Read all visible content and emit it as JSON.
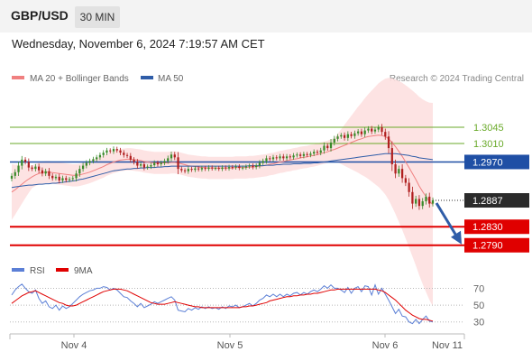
{
  "header": {
    "symbol": "GBP/USD",
    "timeframe": "30 MIN",
    "timestamp": "Wednesday, November 6, 2024 7:19:57 AM CET"
  },
  "legend": {
    "bollinger": "MA 20 + Bollinger Bands",
    "ma50": "MA 50",
    "credit": "Research © 2024 Trading Central"
  },
  "colors": {
    "resistance": "#6aaa2a",
    "pivot": "#1f4fa5",
    "support": "#e00000",
    "price": "#2b2b2b",
    "bull_candle": "#3a8a2a",
    "bear_candle": "#b02020",
    "ma20": "#f08080",
    "band_fill": "#fde0e0",
    "ma50": "#2f5da8",
    "rsi": "#5b7fd6",
    "rsi_ma": "#e00000",
    "arrow": "#2f5da8"
  },
  "chart_data": [
    {
      "type": "line",
      "subtype": "candlestick",
      "ylim": [
        1.277,
        1.3125
      ],
      "x_ticks": [
        "Nov 4",
        "Nov 5",
        "Nov 6",
        "Nov 11"
      ],
      "levels": [
        {
          "label": "1.3045",
          "value": 1.3045,
          "kind": "resistance"
        },
        {
          "label": "1.3010",
          "value": 1.301,
          "kind": "resistance"
        },
        {
          "label": "1.2970",
          "value": 1.297,
          "kind": "pivot"
        },
        {
          "label": "1.2887",
          "value": 1.2887,
          "kind": "price"
        },
        {
          "label": "1.2830",
          "value": 1.283,
          "kind": "support"
        },
        {
          "label": "1.2790",
          "value": 1.279,
          "kind": "support"
        }
      ],
      "close": [
        1.294,
        1.2948,
        1.2962,
        1.2975,
        1.297,
        1.2958,
        1.2955,
        1.296,
        1.2952,
        1.2945,
        1.295,
        1.294,
        1.2935,
        1.2938,
        1.293,
        1.2935,
        1.2931,
        1.2933,
        1.2935,
        1.2945,
        1.2955,
        1.2962,
        1.2968,
        1.2972,
        1.2976,
        1.298,
        1.2985,
        1.299,
        1.2995,
        1.2993,
        1.2998,
        1.2995,
        1.299,
        1.2985,
        1.2983,
        1.2975,
        1.297,
        1.2962,
        1.2965,
        1.2958,
        1.296,
        1.2963,
        1.2968,
        1.2965,
        1.2968,
        1.2972,
        1.2978,
        1.2986,
        1.298,
        1.2955,
        1.2952,
        1.295,
        1.2955,
        1.2953,
        1.2956,
        1.2954,
        1.2957,
        1.2955,
        1.2958,
        1.2956,
        1.2957,
        1.2955,
        1.2958,
        1.2956,
        1.2959,
        1.2958,
        1.296,
        1.2957,
        1.2958,
        1.296,
        1.2962,
        1.2959,
        1.2962,
        1.2968,
        1.2972,
        1.2978,
        1.2976,
        1.298,
        1.2978,
        1.2982,
        1.2978,
        1.2982,
        1.298,
        1.2984,
        1.2986,
        1.2983,
        1.2987,
        1.2985,
        1.2988,
        1.2992,
        1.299,
        1.2995,
        1.3005,
        1.3,
        1.3012,
        1.302,
        1.3025,
        1.3028,
        1.3022,
        1.303,
        1.3026,
        1.3032,
        1.3036,
        1.303,
        1.3038,
        1.3042,
        1.3036,
        1.304,
        1.3045,
        1.3035,
        1.3025,
        1.3,
        1.2965,
        1.2945,
        1.2955,
        1.2935,
        1.2925,
        1.2905,
        1.288,
        1.289,
        1.2875,
        1.2885,
        1.2895,
        1.288,
        1.2887
      ],
      "ma50": [
        1.2915,
        1.2916,
        1.2917,
        1.2918,
        1.2919,
        1.292,
        1.292,
        1.2921,
        1.2922,
        1.2922,
        1.2923,
        1.2923,
        1.2924,
        1.2924,
        1.2925,
        1.2926,
        1.2927,
        1.2928,
        1.2929,
        1.293,
        1.2932,
        1.2933,
        1.2935,
        1.2937,
        1.2939,
        1.2941,
        1.2943,
        1.2945,
        1.2947,
        1.2949,
        1.2951,
        1.2952,
        1.2953,
        1.2954,
        1.2955,
        1.2955,
        1.2956,
        1.2956,
        1.2957,
        1.2957,
        1.2958,
        1.2958,
        1.2958,
        1.2959,
        1.2959,
        1.296,
        1.296,
        1.2961,
        1.2961,
        1.2961,
        1.2961,
        1.2961,
        1.2961,
        1.2961,
        1.2961,
        1.2961,
        1.2961,
        1.2961,
        1.2961,
        1.2961,
        1.2961,
        1.2961,
        1.2961,
        1.2961,
        1.2961,
        1.2961,
        1.2961,
        1.2961,
        1.2961,
        1.2961,
        1.2962,
        1.2962,
        1.2962,
        1.2962,
        1.2962,
        1.2963,
        1.2963,
        1.2963,
        1.2964,
        1.2964,
        1.2965,
        1.2965,
        1.2965,
        1.2966,
        1.2966,
        1.2966,
        1.2967,
        1.2967,
        1.2967,
        1.2968,
        1.2968,
        1.2969,
        1.297,
        1.2971,
        1.2972,
        1.2973,
        1.2974,
        1.2975,
        1.2976,
        1.2977,
        1.2978,
        1.2979,
        1.298,
        1.2981,
        1.2982,
        1.2983,
        1.2984,
        1.2985,
        1.2986,
        1.2987,
        1.2988,
        1.2988,
        1.2988,
        1.2988,
        1.2987,
        1.2986,
        1.2985,
        1.2984,
        1.2982,
        1.2981,
        1.2979,
        1.2978,
        1.2977,
        1.2976,
        1.2975
      ],
      "ma20": [
        1.2905,
        1.291,
        1.2916,
        1.2922,
        1.2928,
        1.2933,
        1.2938,
        1.2942,
        1.2945,
        1.2947,
        1.2948,
        1.2948,
        1.2947,
        1.2946,
        1.2945,
        1.2944,
        1.2943,
        1.2942,
        1.2941,
        1.2941,
        1.2942,
        1.2944,
        1.2946,
        1.2948,
        1.2951,
        1.2954,
        1.2957,
        1.296,
        1.2964,
        1.2967,
        1.297,
        1.2972,
        1.2974,
        1.2975,
        1.2976,
        1.2976,
        1.2975,
        1.2974,
        1.2973,
        1.2971,
        1.297,
        1.2969,
        1.2968,
        1.2968,
        1.2968,
        1.2968,
        1.2968,
        1.2969,
        1.2969,
        1.2968,
        1.2966,
        1.2964,
        1.2962,
        1.2961,
        1.296,
        1.2959,
        1.2958,
        1.2958,
        1.2957,
        1.2957,
        1.2957,
        1.2957,
        1.2957,
        1.2957,
        1.2957,
        1.2957,
        1.2958,
        1.2958,
        1.2958,
        1.2958,
        1.2959,
        1.2959,
        1.296,
        1.2961,
        1.2962,
        1.2963,
        1.2965,
        1.2966,
        1.2968,
        1.297,
        1.2971,
        1.2973,
        1.2974,
        1.2976,
        1.2977,
        1.2979,
        1.298,
        1.2981,
        1.2983,
        1.2984,
        1.2986,
        1.2988,
        1.299,
        1.2992,
        1.2995,
        1.2997,
        1.3,
        1.3003,
        1.3006,
        1.3009,
        1.3012,
        1.3015,
        1.3018,
        1.302,
        1.3023,
        1.3025,
        1.3026,
        1.3027,
        1.3028,
        1.3027,
        1.3025,
        1.302,
        1.3012,
        1.3003,
        1.2993,
        1.2982,
        1.297,
        1.2958,
        1.2945,
        1.2932,
        1.2918,
        1.2906,
        1.2895,
        1.2885,
        1.2878
      ]
    },
    {
      "type": "line",
      "title": "",
      "legend": [
        "RSI",
        "9MA"
      ],
      "ylim": [
        20,
        78
      ],
      "y_ticks": [
        70,
        50,
        30
      ],
      "series": [
        {
          "name": "RSI",
          "values": [
            62,
            68,
            72,
            75,
            70,
            66,
            64,
            68,
            58,
            52,
            55,
            48,
            46,
            50,
            44,
            49,
            46,
            48,
            52,
            56,
            60,
            63,
            65,
            67,
            68,
            70,
            70,
            72,
            71,
            68,
            70,
            68,
            64,
            60,
            59,
            55,
            52,
            48,
            52,
            47,
            49,
            51,
            54,
            52,
            54,
            56,
            58,
            60,
            56,
            44,
            43,
            42,
            46,
            44,
            47,
            45,
            48,
            46,
            48,
            46,
            47,
            45,
            48,
            46,
            49,
            48,
            50,
            47,
            48,
            50,
            52,
            49,
            52,
            56,
            58,
            62,
            60,
            63,
            60,
            63,
            60,
            63,
            61,
            64,
            65,
            62,
            65,
            63,
            66,
            68,
            66,
            69,
            73,
            70,
            74,
            70,
            70,
            68,
            65,
            71,
            64,
            70,
            72,
            66,
            73,
            72,
            62,
            74,
            63,
            70,
            63,
            56,
            48,
            40,
            45,
            37,
            36,
            30,
            28,
            33,
            28,
            33,
            37,
            31,
            30
          ]
        },
        {
          "name": "9MA",
          "values": [
            52,
            55,
            58,
            61,
            63,
            65,
            66,
            67,
            65,
            63,
            61,
            59,
            57,
            55,
            53,
            52,
            50,
            49,
            49,
            50,
            52,
            54,
            56,
            58,
            60,
            62,
            64,
            66,
            67,
            68,
            69,
            69,
            69,
            68,
            67,
            65,
            63,
            61,
            59,
            57,
            55,
            53,
            52,
            51,
            51,
            51,
            52,
            53,
            54,
            53,
            52,
            51,
            50,
            49,
            48,
            48,
            47,
            47,
            47,
            47,
            47,
            47,
            47,
            47,
            47,
            47,
            47,
            47,
            48,
            48,
            49,
            49,
            50,
            51,
            52,
            53,
            55,
            56,
            57,
            58,
            59,
            60,
            60,
            61,
            61,
            62,
            62,
            63,
            63,
            64,
            64,
            65,
            66,
            67,
            68,
            68,
            69,
            69,
            69,
            69,
            69,
            69,
            69,
            69,
            69,
            69,
            69,
            69,
            68,
            67,
            65,
            62,
            59,
            56,
            52,
            48,
            44,
            41,
            38,
            36,
            34,
            33,
            33,
            32,
            31
          ]
        }
      ]
    }
  ],
  "x_labels": [
    "Nov 4",
    "Nov 5",
    "Nov 6",
    "Nov 11"
  ]
}
